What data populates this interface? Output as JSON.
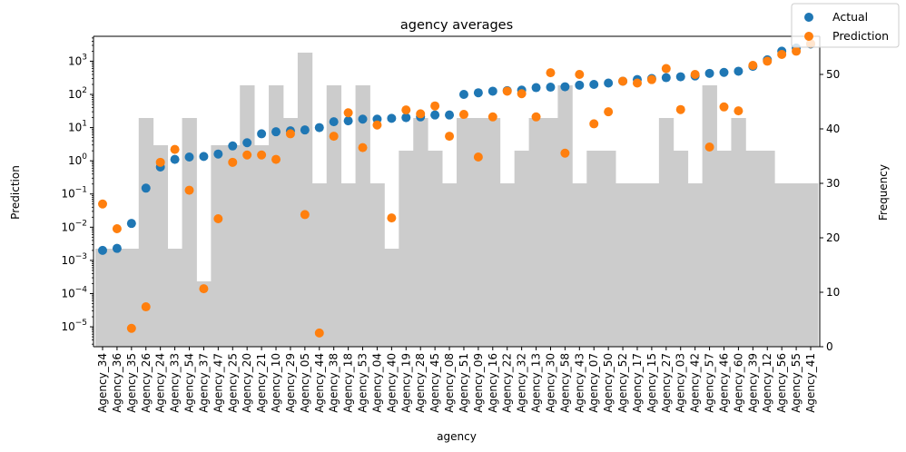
{
  "chart_data": {
    "type": "scatter",
    "title": "agency averages",
    "xlabel": "agency",
    "ylabel_left": "Prediction",
    "ylabel_right": "Frequency",
    "left_scale": "log",
    "left_ylim_exp": [
      -5.6,
      3.75
    ],
    "left_tick_exponents": [
      -5,
      -4,
      -3,
      -2,
      -1,
      0,
      1,
      2,
      3
    ],
    "right_ylim": [
      0,
      57
    ],
    "right_ticks": [
      0,
      10,
      20,
      30,
      40,
      50
    ],
    "grid": false,
    "legend_position": "top-right",
    "categories": [
      "Agency_34",
      "Agency_36",
      "Agency_35",
      "Agency_26",
      "Agency_24",
      "Agency_33",
      "Agency_54",
      "Agency_37",
      "Agency_47",
      "Agency_25",
      "Agency_20",
      "Agency_21",
      "Agency_10",
      "Agency_29",
      "Agency_05",
      "Agency_44",
      "Agency_38",
      "Agency_18",
      "Agency_53",
      "Agency_04",
      "Agency_40",
      "Agency_19",
      "Agency_28",
      "Agency_45",
      "Agency_08",
      "Agency_51",
      "Agency_09",
      "Agency_16",
      "Agency_22",
      "Agency_32",
      "Agency_13",
      "Agency_30",
      "Agency_58",
      "Agency_43",
      "Agency_07",
      "Agency_50",
      "Agency_52",
      "Agency_17",
      "Agency_15",
      "Agency_27",
      "Agency_03",
      "Agency_42",
      "Agency_57",
      "Agency_46",
      "Agency_60",
      "Agency_39",
      "Agency_12",
      "Agency_56",
      "Agency_55",
      "Agency_41"
    ],
    "frequency": [
      18,
      18,
      18,
      42,
      37,
      18,
      42,
      12,
      37,
      37,
      48,
      37,
      48,
      42,
      54,
      30,
      48,
      30,
      48,
      30,
      18,
      36,
      42,
      36,
      30,
      42,
      42,
      42,
      30,
      36,
      42,
      42,
      48,
      30,
      36,
      36,
      30,
      30,
      30,
      42,
      36,
      30,
      48,
      36,
      42,
      36,
      36,
      30,
      30,
      30
    ],
    "bar_color": "#cccccc",
    "series": [
      {
        "name": "Actual",
        "color": "#1f77b4",
        "values": [
          0.002,
          0.0023,
          0.013,
          0.15,
          0.65,
          1.1,
          1.3,
          1.35,
          1.6,
          2.8,
          3.5,
          6.5,
          7.5,
          8,
          8.5,
          10,
          15,
          16,
          18,
          18,
          19,
          20,
          21,
          24,
          24,
          100,
          112,
          125,
          130,
          135,
          160,
          165,
          170,
          190,
          200,
          220,
          250,
          280,
          300,
          320,
          340,
          360,
          430,
          460,
          500,
          700,
          1100,
          2000,
          2500,
          3300
        ]
      },
      {
        "name": "Prediction",
        "color": "#ff7f0e",
        "values": [
          0.05,
          0.009,
          9e-06,
          4e-05,
          0.9,
          2.2,
          0.13,
          0.00014,
          0.018,
          0.9,
          1.5,
          1.5,
          1.1,
          6.5,
          0.024,
          6.5e-06,
          5.5,
          28,
          2.5,
          12,
          0.019,
          34,
          26,
          45,
          5.5,
          25,
          1.3,
          21,
          125,
          105,
          21,
          450,
          1.7,
          400,
          13,
          30,
          250,
          220,
          280,
          600,
          35,
          400,
          2.6,
          42,
          32,
          750,
          1000,
          1600,
          2000,
          3400
        ]
      }
    ]
  }
}
